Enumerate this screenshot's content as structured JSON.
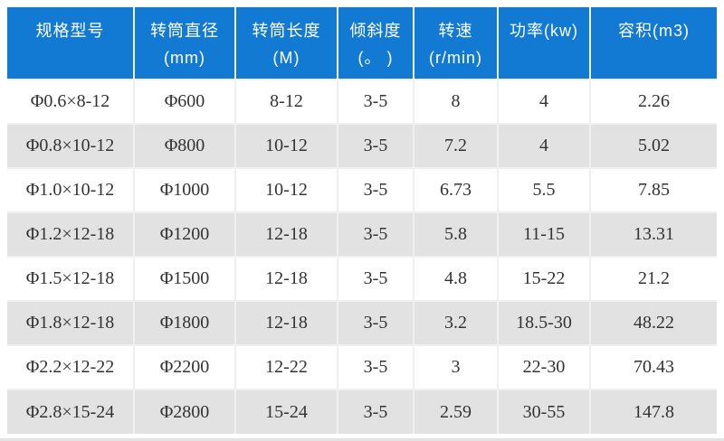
{
  "colors": {
    "header_bg": "#127ad2",
    "header_text": "#ffffff",
    "row_bg": "#ffffff",
    "row_alt_bg": "#e2e2e2",
    "body_text": "#333333",
    "cell_border": "#f0f0f0"
  },
  "table": {
    "columns": [
      {
        "id": "spec-model",
        "line1": "规格型号",
        "line2": ""
      },
      {
        "id": "drum-diameter",
        "line1": "转筒直径",
        "line2": "(mm)"
      },
      {
        "id": "drum-length",
        "line1": "转筒长度",
        "line2": "(M)"
      },
      {
        "id": "incline",
        "line1": "倾斜度",
        "line2": "(。 )"
      },
      {
        "id": "speed",
        "line1": "转速",
        "line2": "(r/min)"
      },
      {
        "id": "power",
        "line1": "功率(kw)",
        "line2": ""
      },
      {
        "id": "volume",
        "line1": "容积(m3)",
        "line2": ""
      }
    ],
    "rows": [
      [
        "Φ0.6×8-12",
        "Φ600",
        "8-12",
        "3-5",
        "8",
        "4",
        "2.26"
      ],
      [
        "Φ0.8×10-12",
        "Φ800",
        "10-12",
        "3-5",
        "7.2",
        "4",
        "5.02"
      ],
      [
        "Φ1.0×10-12",
        "Φ1000",
        "10-12",
        "3-5",
        "6.73",
        "5.5",
        "7.85"
      ],
      [
        "Φ1.2×12-18",
        "Φ1200",
        "12-18",
        "3-5",
        "5.8",
        "11-15",
        "13.31"
      ],
      [
        "Φ1.5×12-18",
        "Φ1500",
        "12-18",
        "3-5",
        "4.8",
        "15-22",
        "21.2"
      ],
      [
        "Φ1.8×12-18",
        "Φ1800",
        "12-18",
        "3-5",
        "3.2",
        "18.5-30",
        "48.22"
      ],
      [
        "Φ2.2×12-22",
        "Φ2200",
        "12-22",
        "3-5",
        "3",
        "22-30",
        "70.43"
      ],
      [
        "Φ2.8×15-24",
        "Φ2800",
        "15-24",
        "3-5",
        "2.59",
        "30-55",
        "147.8"
      ]
    ]
  }
}
